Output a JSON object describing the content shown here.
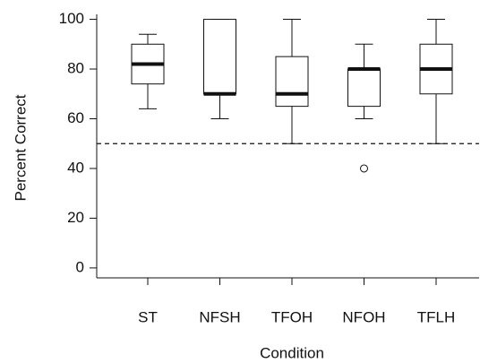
{
  "chart_data": {
    "type": "box",
    "x_label": "Condition",
    "y_label": "Percent Correct",
    "categories": [
      "ST",
      "NFSH",
      "TFOH",
      "NFOH",
      "TFLH"
    ],
    "boxes": [
      {
        "low": 64,
        "q1": 74,
        "median": 82,
        "q3": 90,
        "high": 94
      },
      {
        "low": 60,
        "q1": 70,
        "median": 70,
        "q3": 100,
        "high": 100
      },
      {
        "low": 50,
        "q1": 65,
        "median": 70,
        "q3": 85,
        "high": 100
      },
      {
        "low": 60,
        "q1": 65,
        "median": 80,
        "q3": 80,
        "high": 90,
        "outliers": [
          40
        ]
      },
      {
        "low": 50,
        "q1": 70,
        "median": 80,
        "q3": 90,
        "high": 100
      }
    ],
    "reference_line": 50,
    "color": "#111111",
    "ylim": [
      -4,
      102
    ],
    "yticks": [
      0,
      20,
      40,
      60,
      80,
      100
    ],
    "grid": false
  }
}
